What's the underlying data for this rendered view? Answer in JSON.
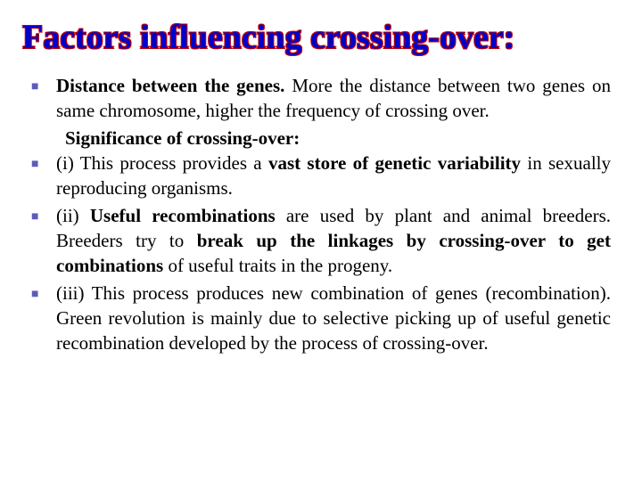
{
  "title": "Factors influencing crossing-over:",
  "items": [
    {
      "prefix": "",
      "parts": [
        {
          "text": "Distance between the genes. ",
          "bold": true
        },
        {
          "text": "More the distance between two genes on same chromosome, higher the frequency of crossing over.",
          "bold": false
        }
      ]
    }
  ],
  "subheading": "Significance of crossing-over:",
  "points": [
    {
      "parts": [
        {
          "text": "(i) This process provides a ",
          "bold": false
        },
        {
          "text": "vast store of genetic variability",
          "bold": true
        },
        {
          "text": " in sexually reproducing organisms.",
          "bold": false
        }
      ]
    },
    {
      "parts": [
        {
          "text": "(ii) ",
          "bold": false
        },
        {
          "text": "Useful recombinations",
          "bold": true
        },
        {
          "text": " are used by plant and animal breeders. Breeders try to ",
          "bold": false
        },
        {
          "text": "break up the linkages by crossing-over to get combinations",
          "bold": true
        },
        {
          "text": " of useful traits in the progeny.",
          "bold": false
        }
      ]
    },
    {
      "parts": [
        {
          "text": "(iii) This process produces new combination of genes (recombination). Green revolution is mainly due to selective picking up of useful genetic recombination developed by the process of crossing-over.",
          "bold": false
        }
      ]
    }
  ],
  "colors": {
    "title_fill": "#0000cc",
    "title_stroke": "#c00000",
    "bullet": "#5b5bba",
    "text": "#000000",
    "background": "#ffffff"
  },
  "typography": {
    "title_size": 38,
    "body_size": 21,
    "font_family": "Georgia serif"
  }
}
